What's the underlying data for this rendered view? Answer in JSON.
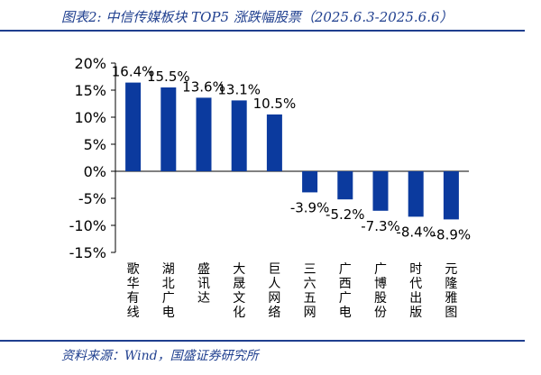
{
  "title": "图表2:  中信传媒板块 TOP5 涨跌幅股票（2025.6.3-2025.6.6）",
  "source": "资料来源：Wind，国盛证券研究所",
  "colors": {
    "bar": "#0b3a9e",
    "accent": "#1f3f8f",
    "text": "#000000",
    "axis": "#000000"
  },
  "chart_data": {
    "type": "bar",
    "categories": [
      "歌华有线",
      "湖北广电",
      "盛讯达",
      "大晟文化",
      "巨人网络",
      "三六五网",
      "广西广电",
      "广博股份",
      "时代出版",
      "元隆雅图"
    ],
    "values": [
      16.4,
      15.5,
      13.6,
      13.1,
      10.5,
      -3.9,
      -5.2,
      -7.3,
      -8.4,
      -8.9
    ],
    "value_labels": [
      "16.4%",
      "15.5%",
      "13.6%",
      "13.1%",
      "10.5%",
      "-3.9%",
      "-5.2%",
      "-7.3%",
      "-8.4%",
      "-8.9%"
    ],
    "ylim": [
      -15,
      20
    ],
    "yticks": [
      20,
      15,
      10,
      5,
      0,
      -5,
      -10,
      -15
    ],
    "ytick_labels": [
      "20%",
      "15%",
      "10%",
      "5%",
      "0%",
      "-5%",
      "-10%",
      "-15%"
    ],
    "xlabel": "",
    "ylabel": "",
    "grid": false,
    "legend": "none"
  }
}
